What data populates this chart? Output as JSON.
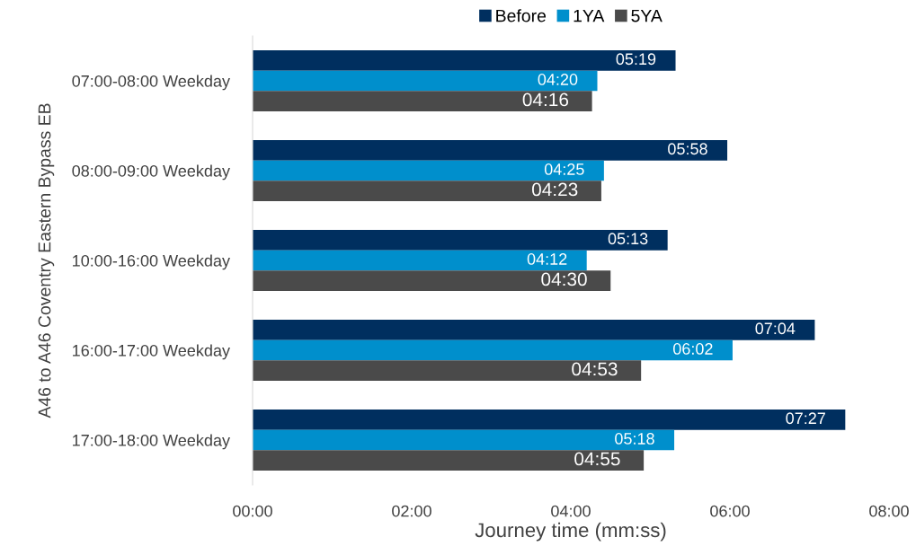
{
  "chart_data": {
    "type": "bar",
    "orientation": "horizontal",
    "ylabel": "A46 to A46 Coventry Eastern Bypass EB",
    "xlabel": "Journey time (mm:ss)",
    "categories": [
      "07:00-08:00 Weekday",
      "08:00-09:00 Weekday",
      "10:00-16:00 Weekday",
      "16:00-17:00 Weekday",
      "17:00-18:00 Weekday"
    ],
    "series": [
      {
        "name": "Before",
        "color": "#002f5f",
        "values": [
          319,
          358,
          313,
          424,
          447
        ],
        "value_labels": [
          "05:19",
          "05:58",
          "05:13",
          "07:04",
          "07:27"
        ]
      },
      {
        "name": "1YA",
        "color": "#008fcc",
        "values": [
          260,
          265,
          252,
          362,
          318
        ],
        "value_labels": [
          "04:20",
          "04:25",
          "04:12",
          "06:02",
          "05:18"
        ]
      },
      {
        "name": "5YA",
        "color": "#4a4a4a",
        "values": [
          256,
          263,
          270,
          293,
          295
        ],
        "value_labels": [
          "04:16",
          "04:23",
          "04:30",
          "04:53",
          "04:55"
        ]
      }
    ],
    "xlim": [
      0,
      480
    ],
    "xticks": [
      {
        "value": 0,
        "label": "00:00"
      },
      {
        "value": 120,
        "label": "02:00"
      },
      {
        "value": 240,
        "label": "04:00"
      },
      {
        "value": 360,
        "label": "06:00"
      },
      {
        "value": 480,
        "label": "08:00"
      }
    ],
    "grid": false,
    "legend": "top"
  }
}
